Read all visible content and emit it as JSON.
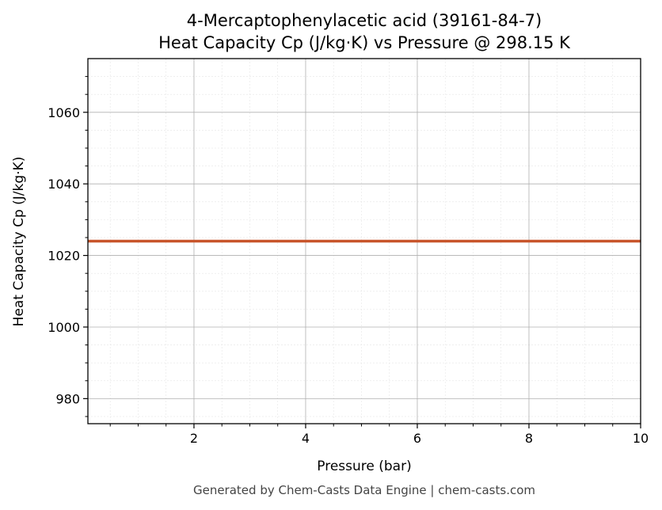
{
  "chart_data": {
    "type": "line",
    "title_lines": [
      "4-Mercaptophenylacetic acid (39161-84-7)",
      "Heat Capacity Cp (J/kg·K) vs Pressure @ 298.15 K"
    ],
    "xlabel": "Pressure (bar)",
    "ylabel": "Heat Capacity Cp (J/kg·K)",
    "xlim": [
      0.1,
      10
    ],
    "ylim": [
      973,
      1075
    ],
    "x_ticks": [
      2,
      4,
      6,
      8,
      10
    ],
    "y_ticks": [
      980,
      1000,
      1020,
      1040,
      1060
    ],
    "grid": true,
    "series": [
      {
        "x": [
          0.1,
          10
        ],
        "y": [
          1024,
          1024
        ],
        "color": "#c8552b"
      }
    ]
  },
  "footer": "Generated by Chem-Casts Data Engine | chem-casts.com"
}
